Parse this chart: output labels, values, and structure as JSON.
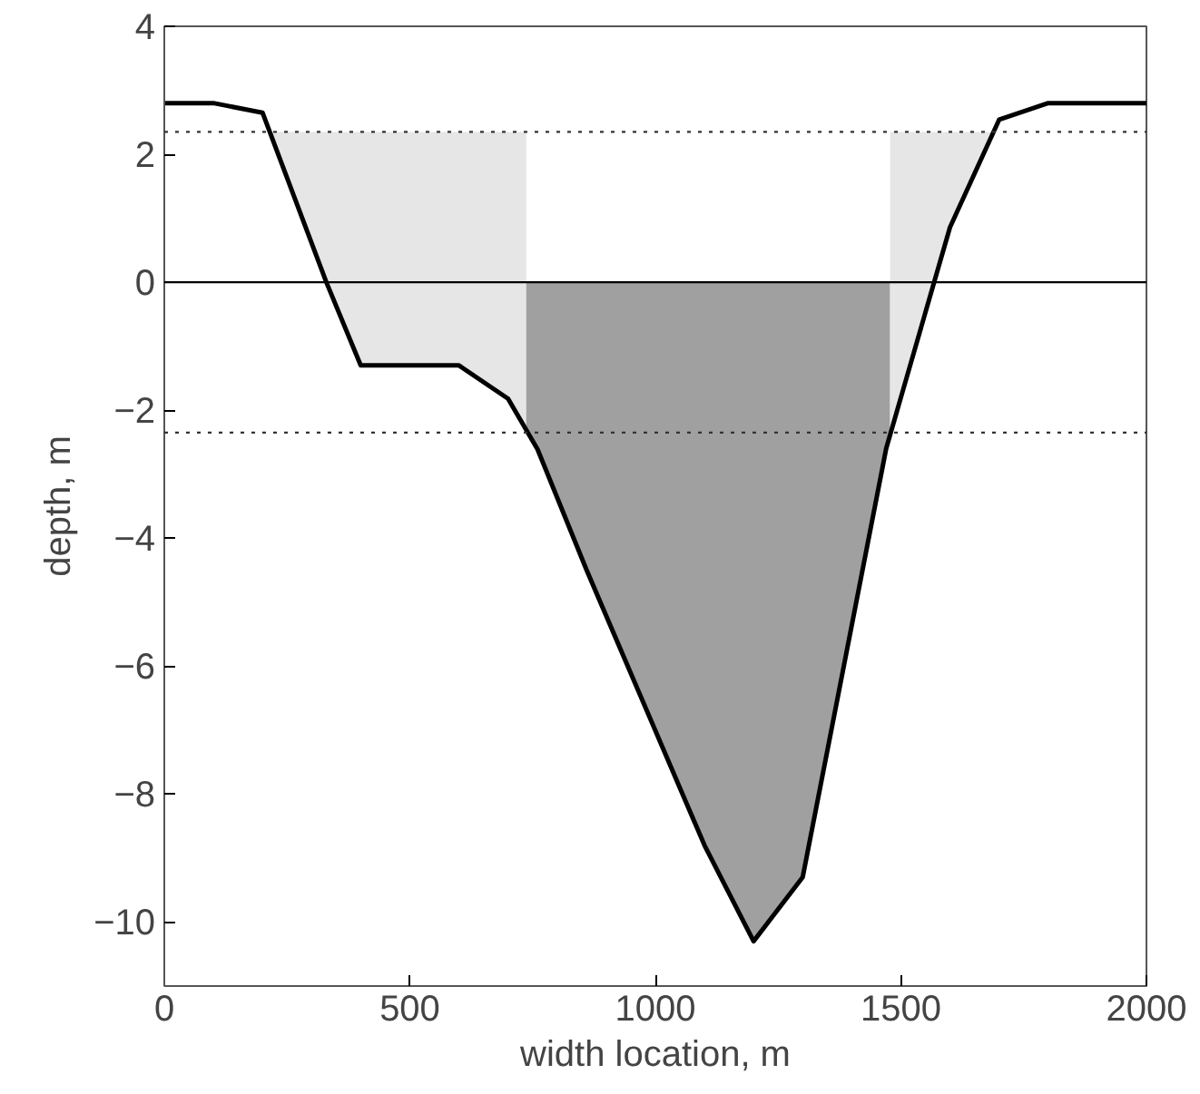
{
  "chart_data": {
    "type": "line",
    "xlabel": "width location, m",
    "ylabel": "depth, m",
    "xlim": [
      0,
      2000
    ],
    "ylim": [
      -11,
      4
    ],
    "xticks": [
      0,
      500,
      1000,
      1500,
      2000
    ],
    "yticks": [
      -10,
      -8,
      -6,
      -4,
      -2,
      0,
      2,
      4
    ],
    "grid": false,
    "marker": "none",
    "line_style": "solid",
    "series": [
      {
        "type": "area",
        "color": "#e6e6e6",
        "x": [
          215,
          330,
          400,
          600,
          700,
          737,
          737
        ],
        "values": [
          2.35,
          0,
          -1.3,
          -1.3,
          -1.82,
          -2.3,
          2.35
        ]
      },
      {
        "type": "area",
        "color": "#a0a0a0",
        "x": [
          737,
          760,
          860,
          1100,
          1200,
          1300,
          1470,
          1478,
          1478,
          737
        ],
        "values": [
          -2.3,
          -2.61,
          -4.5,
          -8.8,
          -10.3,
          -9.3,
          -2.6,
          -2.4,
          0,
          0
        ]
      },
      {
        "type": "area",
        "color": "#e6e6e6",
        "x": [
          1478,
          1500,
          1600,
          1689,
          1478
        ],
        "values": [
          -2.4,
          -1.8,
          0.86,
          2.35,
          2.35
        ]
      },
      {
        "color": "#000000",
        "x": [
          0,
          100,
          200,
          330,
          400,
          600,
          700,
          760,
          860,
          1100,
          1200,
          1300,
          1470,
          1500,
          1600,
          1700,
          1800,
          2000
        ],
        "values": [
          2.8,
          2.8,
          2.65,
          0,
          -1.3,
          -1.3,
          -1.82,
          -2.61,
          -4.5,
          -8.8,
          -10.3,
          -9.3,
          -2.6,
          -1.8,
          0.86,
          2.54,
          2.8,
          2.8
        ]
      }
    ],
    "ref_lines": [
      {
        "axis": "y",
        "value": 0,
        "color": "#000000",
        "line_style": "solid"
      },
      {
        "axis": "y",
        "value": 2.35,
        "color": "#333333",
        "line_style": "dotted"
      },
      {
        "axis": "y",
        "value": -2.35,
        "color": "#333333",
        "line_style": "dotted"
      }
    ]
  }
}
